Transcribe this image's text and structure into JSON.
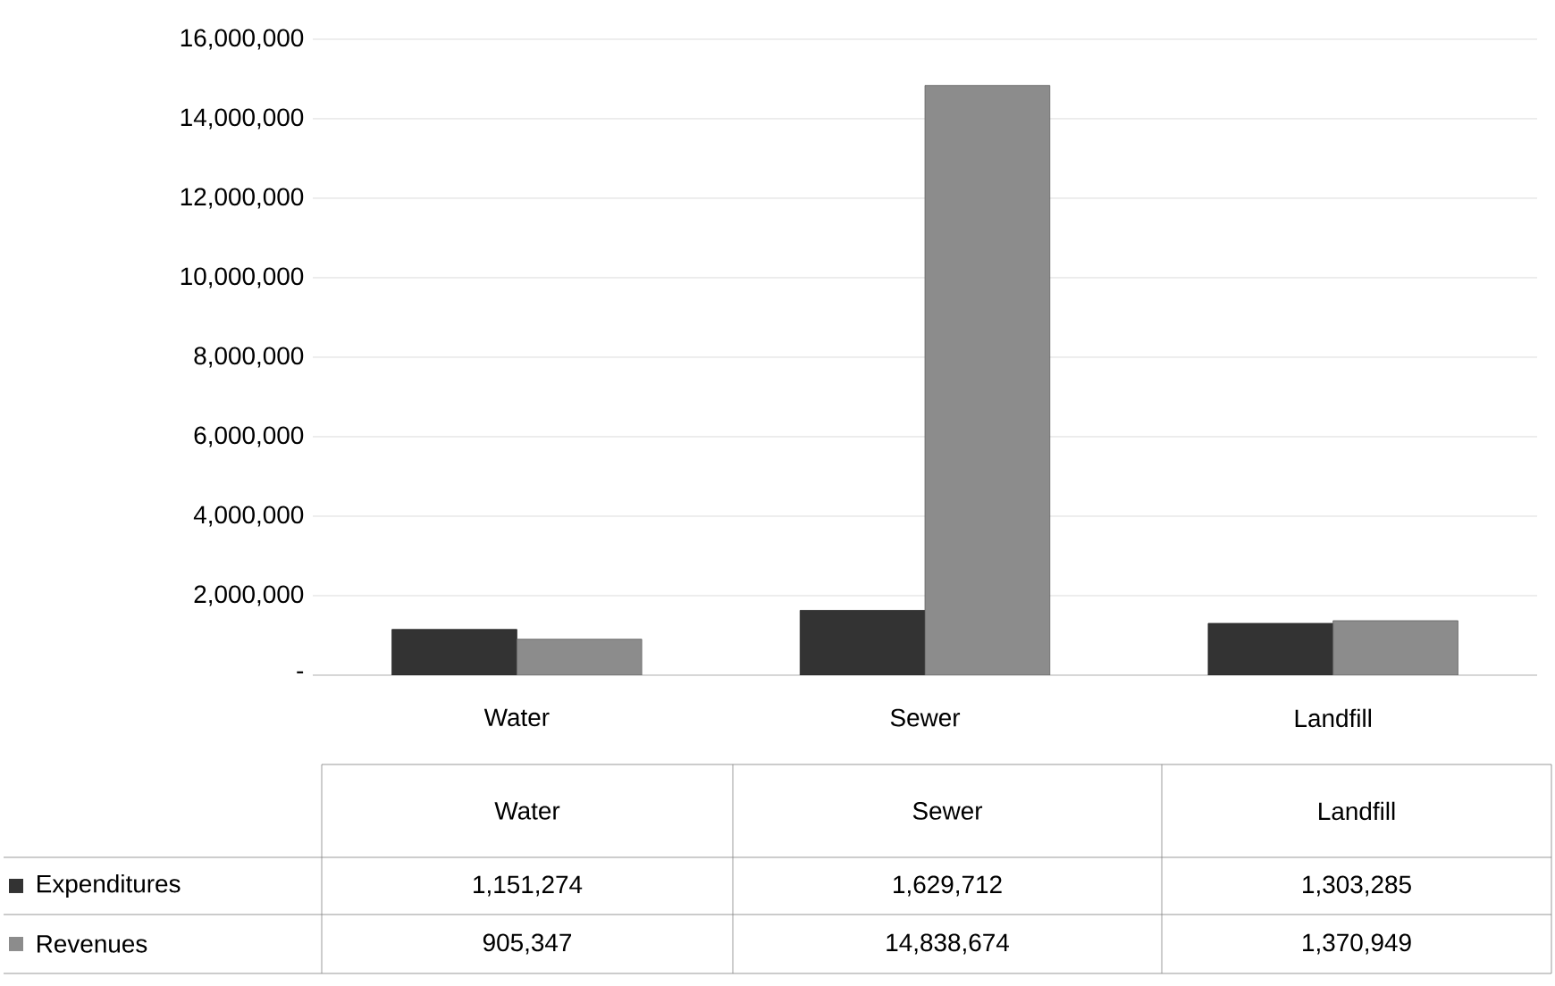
{
  "chart_data": {
    "type": "bar",
    "categories": [
      "Water",
      "Sewer",
      "Landfill"
    ],
    "series": [
      {
        "name": "Expenditures",
        "color": "#333333",
        "values": [
          1151274,
          1629712,
          1303285
        ],
        "value_labels": [
          "1,151,274",
          "1,629,712",
          "1,303,285"
        ]
      },
      {
        "name": "Revenues",
        "color": "#8c8c8c",
        "values": [
          905347,
          14838674,
          1370949
        ],
        "value_labels": [
          "905,347",
          "14,838,674",
          "1,370,949"
        ]
      }
    ],
    "ylim": [
      0,
      16000000
    ],
    "yticks": [
      {
        "value": 0,
        "label": "-"
      },
      {
        "value": 2000000,
        "label": "2,000,000"
      },
      {
        "value": 4000000,
        "label": "4,000,000"
      },
      {
        "value": 6000000,
        "label": "6,000,000"
      },
      {
        "value": 8000000,
        "label": "8,000,000"
      },
      {
        "value": 10000000,
        "label": "10,000,000"
      },
      {
        "value": 12000000,
        "label": "12,000,000"
      },
      {
        "value": 14000000,
        "label": "14,000,000"
      },
      {
        "value": 16000000,
        "label": "16,000,000"
      }
    ],
    "grid": "y",
    "legend": "bottom"
  }
}
